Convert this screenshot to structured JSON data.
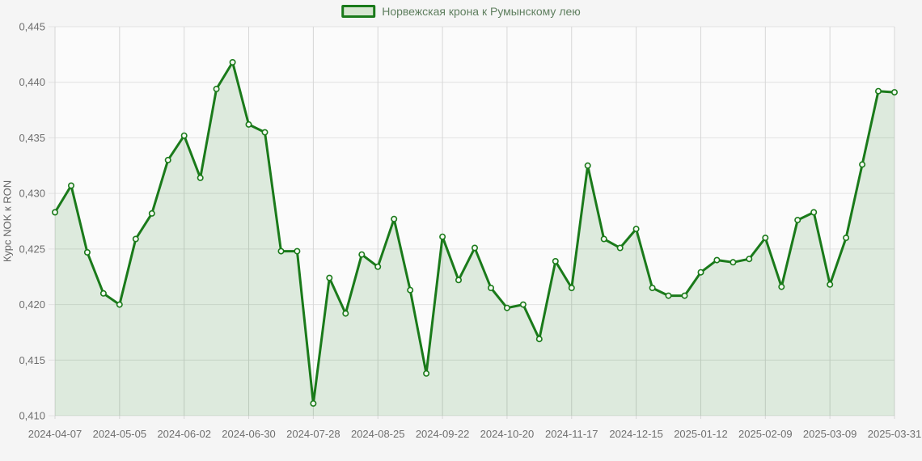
{
  "page": {
    "background": "#f5f5f5",
    "plot_background": "#fbfbfb"
  },
  "legend": {
    "label": "Норвежская крона к Румынскому лею"
  },
  "chart_data": {
    "type": "area",
    "title": "",
    "ylabel": "Курс NOK к RON",
    "xlabel": "",
    "grid": true,
    "legend_position": "top",
    "ylim": [
      0.41,
      0.445
    ],
    "y_tick_step": 0.005,
    "y_tick_labels": [
      "0,445",
      "0,440",
      "0,435",
      "0,430",
      "0,425",
      "0,420",
      "0,415",
      "0,410"
    ],
    "x_tick_labels": [
      "2024-04-07",
      "2024-05-05",
      "2024-06-02",
      "2024-06-30",
      "2024-07-28",
      "2024-08-25",
      "2024-09-22",
      "2024-10-20",
      "2024-11-17",
      "2024-12-15",
      "2025-01-12",
      "2025-02-09",
      "2025-03-09",
      "2025-03-31"
    ],
    "x_tick_indices": [
      0,
      4,
      8,
      12,
      16,
      20,
      24,
      28,
      32,
      36,
      40,
      44,
      48,
      52
    ],
    "series": [
      {
        "name": "Норвежская крона к Румынскому лею",
        "x": [
          "2024-04-07",
          "2024-04-14",
          "2024-04-21",
          "2024-04-28",
          "2024-05-05",
          "2024-05-12",
          "2024-05-19",
          "2024-05-26",
          "2024-06-02",
          "2024-06-09",
          "2024-06-16",
          "2024-06-23",
          "2024-06-30",
          "2024-07-07",
          "2024-07-14",
          "2024-07-21",
          "2024-07-28",
          "2024-08-04",
          "2024-08-11",
          "2024-08-18",
          "2024-08-25",
          "2024-09-01",
          "2024-09-08",
          "2024-09-15",
          "2024-09-22",
          "2024-09-29",
          "2024-10-06",
          "2024-10-13",
          "2024-10-20",
          "2024-10-27",
          "2024-11-03",
          "2024-11-10",
          "2024-11-17",
          "2024-11-24",
          "2024-12-01",
          "2024-12-08",
          "2024-12-15",
          "2024-12-22",
          "2024-12-29",
          "2025-01-05",
          "2025-01-12",
          "2025-01-19",
          "2025-01-26",
          "2025-02-02",
          "2025-02-09",
          "2025-02-16",
          "2025-02-23",
          "2025-03-02",
          "2025-03-09",
          "2025-03-16",
          "2025-03-23",
          "2025-03-30",
          "2025-03-31"
        ],
        "values": [
          0.4283,
          0.4307,
          0.4247,
          0.421,
          0.42,
          0.4259,
          0.4282,
          0.433,
          0.4352,
          0.4314,
          0.4394,
          0.4418,
          0.4362,
          0.4355,
          0.4248,
          0.4248,
          0.4111,
          0.4224,
          0.4192,
          0.4245,
          0.4234,
          0.4277,
          0.4213,
          0.4138,
          0.4261,
          0.4222,
          0.4251,
          0.4215,
          0.4197,
          0.42,
          0.4169,
          0.4239,
          0.4215,
          0.4325,
          0.4259,
          0.4251,
          0.4268,
          0.4215,
          0.4208,
          0.4208,
          0.4229,
          0.424,
          0.4238,
          0.4241,
          0.426,
          0.4216,
          0.4276,
          0.4283,
          0.4218,
          0.426,
          0.4326,
          0.4392,
          0.4391
        ]
      }
    ],
    "colors": {
      "line": "#1a7a1a",
      "area_fill": "rgba(26,122,26,0.13)",
      "marker_fill": "#f6f9f3",
      "grid_h": "#e2e2e2",
      "grid_v": "#d6d6d6",
      "tick_text": "#6e6e6e",
      "legend_box_fill": "#d7e6d1"
    }
  }
}
